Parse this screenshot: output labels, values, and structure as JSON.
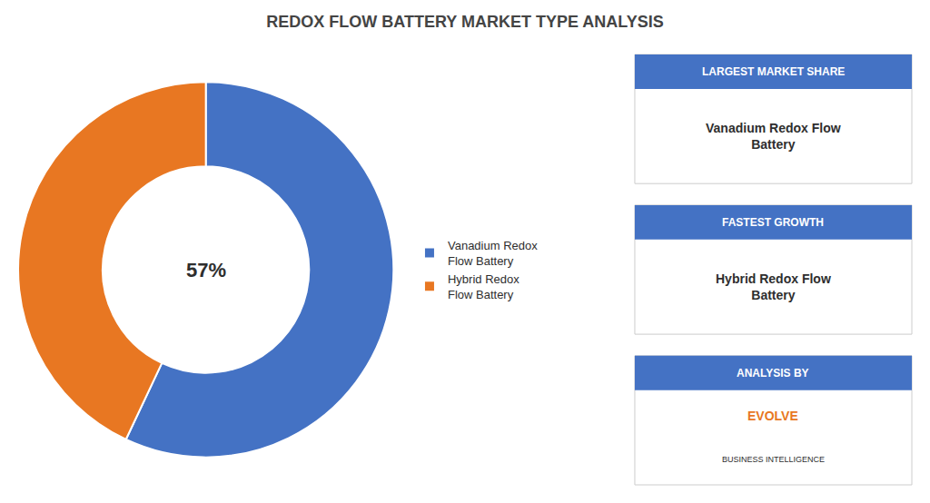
{
  "chart_data": {
    "type": "pie",
    "title": "REDOX FLOW BATTERY MARKET TYPE ANALYSIS",
    "categories": [
      "Vanadium Redox\nFlow Battery",
      "Hybrid Redox\nFlow Battery"
    ],
    "values": [
      57,
      43
    ],
    "colors": [
      "#4472C4",
      "#E87722"
    ],
    "legend": "right",
    "annotations": [
      "57%",
      "LARGEST MARKET SHARE",
      "Vanadium Redox Flow\nBattery",
      "FASTEST GROWTH",
      "Hybrid Redox Flow\nBattery",
      "ANALYSIS BY",
      "EVOLVE",
      "BUSINESS INTELLIGENCE"
    ]
  }
}
